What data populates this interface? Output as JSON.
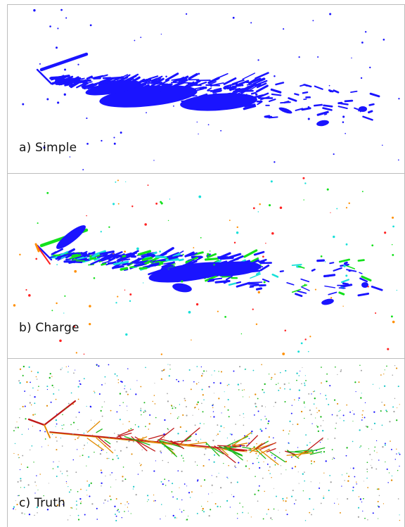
{
  "panels": [
    {
      "label": "a) Simple"
    },
    {
      "label": "b) Charge"
    },
    {
      "label": "c) Truth"
    }
  ],
  "colors": {
    "simple": "#1a14ff",
    "charge": [
      "#1a14ff",
      "#12e11b",
      "#18e0d9",
      "#ff2222",
      "#ff8f00"
    ],
    "truth": [
      "#c01818",
      "#e28a00",
      "#18b818",
      "#1a14ff",
      "#18c6c6",
      "#a0a0a0"
    ],
    "border": "#bdbdbd"
  }
}
